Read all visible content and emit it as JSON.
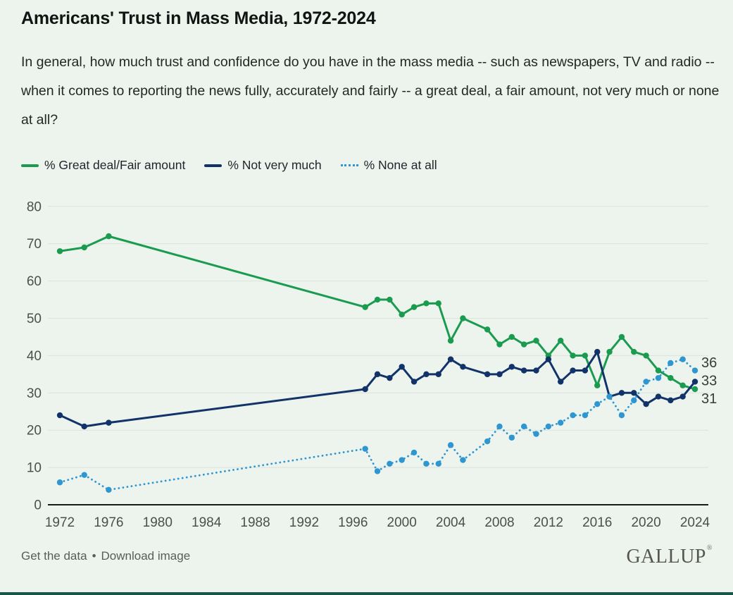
{
  "page": {
    "background": "#edf4ed",
    "bottom_bar_color": "#1b5449"
  },
  "header": {
    "title": "Americans' Trust in Mass Media, 1972-2024",
    "subtitle": "In general, how much trust and confidence do you have in the mass media -- such as newspapers, TV and radio -- when it comes to reporting the news fully, accurately and fairly -- a great deal, a fair amount, not very much or none at all?"
  },
  "chart_data": {
    "type": "line",
    "x": [
      1972,
      1974,
      1976,
      1997,
      1998,
      1999,
      2000,
      2001,
      2002,
      2003,
      2004,
      2005,
      2007,
      2008,
      2009,
      2010,
      2011,
      2012,
      2013,
      2014,
      2015,
      2016,
      2017,
      2018,
      2019,
      2020,
      2021,
      2022,
      2023,
      2024
    ],
    "series": [
      {
        "name": "% Great deal/Fair amount",
        "color": "#1a9b50",
        "style": "solid",
        "values": [
          68,
          69,
          72,
          53,
          55,
          55,
          51,
          53,
          54,
          54,
          44,
          50,
          47,
          43,
          45,
          43,
          44,
          40,
          44,
          40,
          40,
          32,
          41,
          45,
          41,
          40,
          36,
          34,
          32,
          31
        ],
        "end_label": "31"
      },
      {
        "name": "% Not very much",
        "color": "#12336a",
        "style": "solid",
        "values": [
          24,
          21,
          22,
          31,
          35,
          34,
          37,
          33,
          35,
          35,
          39,
          37,
          35,
          35,
          37,
          36,
          36,
          39,
          33,
          36,
          36,
          41,
          29,
          30,
          30,
          27,
          29,
          28,
          29,
          33
        ],
        "end_label": "33"
      },
      {
        "name": "% None at all",
        "color": "#2e96d1",
        "style": "dotted",
        "values": [
          6,
          8,
          4,
          15,
          9,
          11,
          12,
          14,
          11,
          11,
          16,
          12,
          17,
          21,
          18,
          21,
          19,
          21,
          22,
          24,
          24,
          27,
          29,
          24,
          28,
          33,
          34,
          38,
          39,
          36
        ],
        "end_label": "36"
      }
    ],
    "ylim": [
      0,
      80
    ],
    "y_ticks": [
      0,
      10,
      20,
      30,
      40,
      50,
      60,
      70,
      80
    ],
    "x_ticks": [
      1972,
      1976,
      1980,
      1984,
      1988,
      1992,
      1996,
      2000,
      2004,
      2008,
      2012,
      2016,
      2020,
      2024
    ],
    "grid": true,
    "legend_position": "top",
    "axis_colors": {
      "tick_label": "#4c4f4c",
      "gridline": "#dce2da",
      "baseline": "#1a1a1a",
      "end_label": "#3a3a3a"
    }
  },
  "footer": {
    "links": [
      {
        "label": "Get the data"
      },
      {
        "label": "Download image"
      }
    ],
    "separator": "•",
    "brand": "GALLUP",
    "brand_mark": "®"
  }
}
